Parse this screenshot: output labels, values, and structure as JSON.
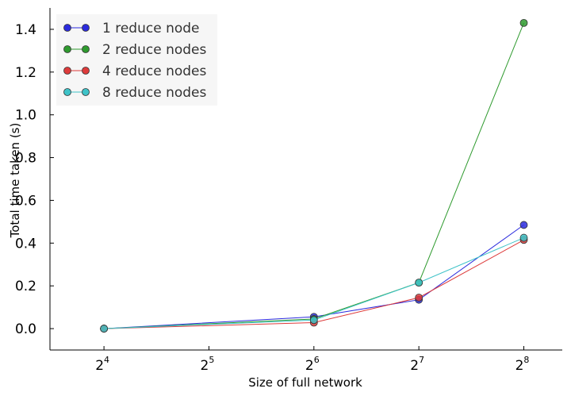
{
  "chart_data": {
    "type": "line",
    "title": "",
    "xlabel": "Size of full network",
    "ylabel": "Total time taken (s)",
    "x_scale": "log2",
    "x": [
      16,
      64,
      128,
      256
    ],
    "x_ticks": [
      {
        "base": "2",
        "exp": "4",
        "value": 16
      },
      {
        "base": "2",
        "exp": "5",
        "value": 32
      },
      {
        "base": "2",
        "exp": "6",
        "value": 64
      },
      {
        "base": "2",
        "exp": "7",
        "value": 128
      },
      {
        "base": "2",
        "exp": "8",
        "value": 256
      }
    ],
    "xlim": [
      11.2,
      330
    ],
    "ylim": [
      -0.1,
      1.5
    ],
    "y_ticks": [
      "0.0",
      "0.2",
      "0.4",
      "0.6",
      "0.8",
      "1.0",
      "1.2",
      "1.4"
    ],
    "grid": false,
    "legend_position": "top-left",
    "series": [
      {
        "name": "1 reduce node",
        "color": "#2b2bdd",
        "values": [
          0.0,
          0.055,
          0.135,
          0.485
        ]
      },
      {
        "name": "2 reduce nodes",
        "color": "#2e9a2e",
        "values": [
          0.0,
          0.045,
          0.215,
          1.43
        ]
      },
      {
        "name": "4 reduce nodes",
        "color": "#dd3b3b",
        "values": [
          0.0,
          0.028,
          0.145,
          0.415
        ]
      },
      {
        "name": "8 reduce nodes",
        "color": "#3ec3c8",
        "values": [
          0.0,
          0.04,
          0.215,
          0.425
        ]
      }
    ]
  }
}
